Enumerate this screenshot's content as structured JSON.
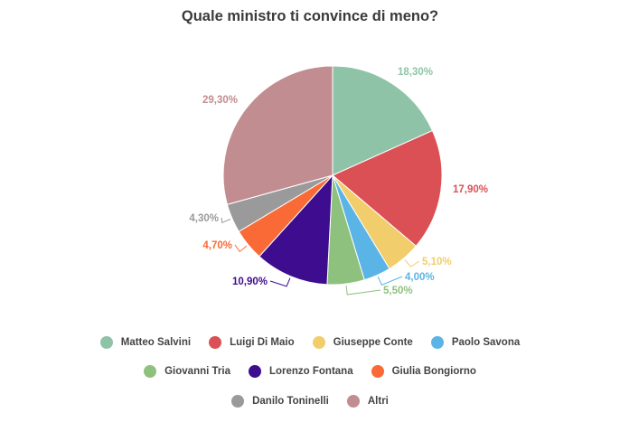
{
  "chart_data": {
    "type": "pie",
    "title": "Quale ministro ti convince di meno?",
    "slices": [
      {
        "name": "Matteo Salvini",
        "value": 18.3,
        "label": "18,30%",
        "color": "#8fc3a8"
      },
      {
        "name": "Luigi Di Maio",
        "value": 17.9,
        "label": "17,90%",
        "color": "#db5055"
      },
      {
        "name": "Giuseppe Conte",
        "value": 5.1,
        "label": "5,10%",
        "color": "#f2cd6b"
      },
      {
        "name": "Paolo Savona",
        "value": 4.0,
        "label": "4,00%",
        "color": "#5ab4e5"
      },
      {
        "name": "Giovanni Tria",
        "value": 5.5,
        "label": "5,50%",
        "color": "#8fc17e"
      },
      {
        "name": "Lorenzo Fontana",
        "value": 10.9,
        "label": "10,90%",
        "color": "#3d0c8f"
      },
      {
        "name": "Giulia Bongiorno",
        "value": 4.7,
        "label": "4,70%",
        "color": "#f96a37"
      },
      {
        "name": "Danilo Toninelli",
        "value": 4.3,
        "label": "4,30%",
        "color": "#9a9a9a"
      },
      {
        "name": "Altri",
        "value": 29.3,
        "label": "29,30%",
        "color": "#c18d91"
      }
    ],
    "legend": {
      "placement": "bottom"
    }
  }
}
